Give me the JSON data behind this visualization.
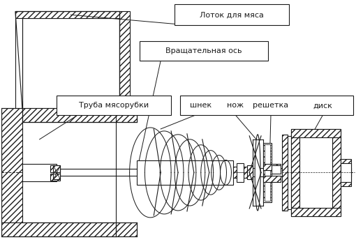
{
  "label_latok": "Лоток для мяса",
  "label_vrash": "Вращательная ось",
  "label_truba": "Труба мясорубки",
  "label_shnek": "шнек",
  "label_nozh": "нож",
  "label_reshetka": "решетка",
  "label_disk": "диск",
  "fig_width": 5.2,
  "fig_height": 3.47,
  "dpi": 100,
  "lc": "#1a1a1a",
  "lw": 0.8,
  "gray": "#bbbbbb",
  "darkgray": "#555555"
}
